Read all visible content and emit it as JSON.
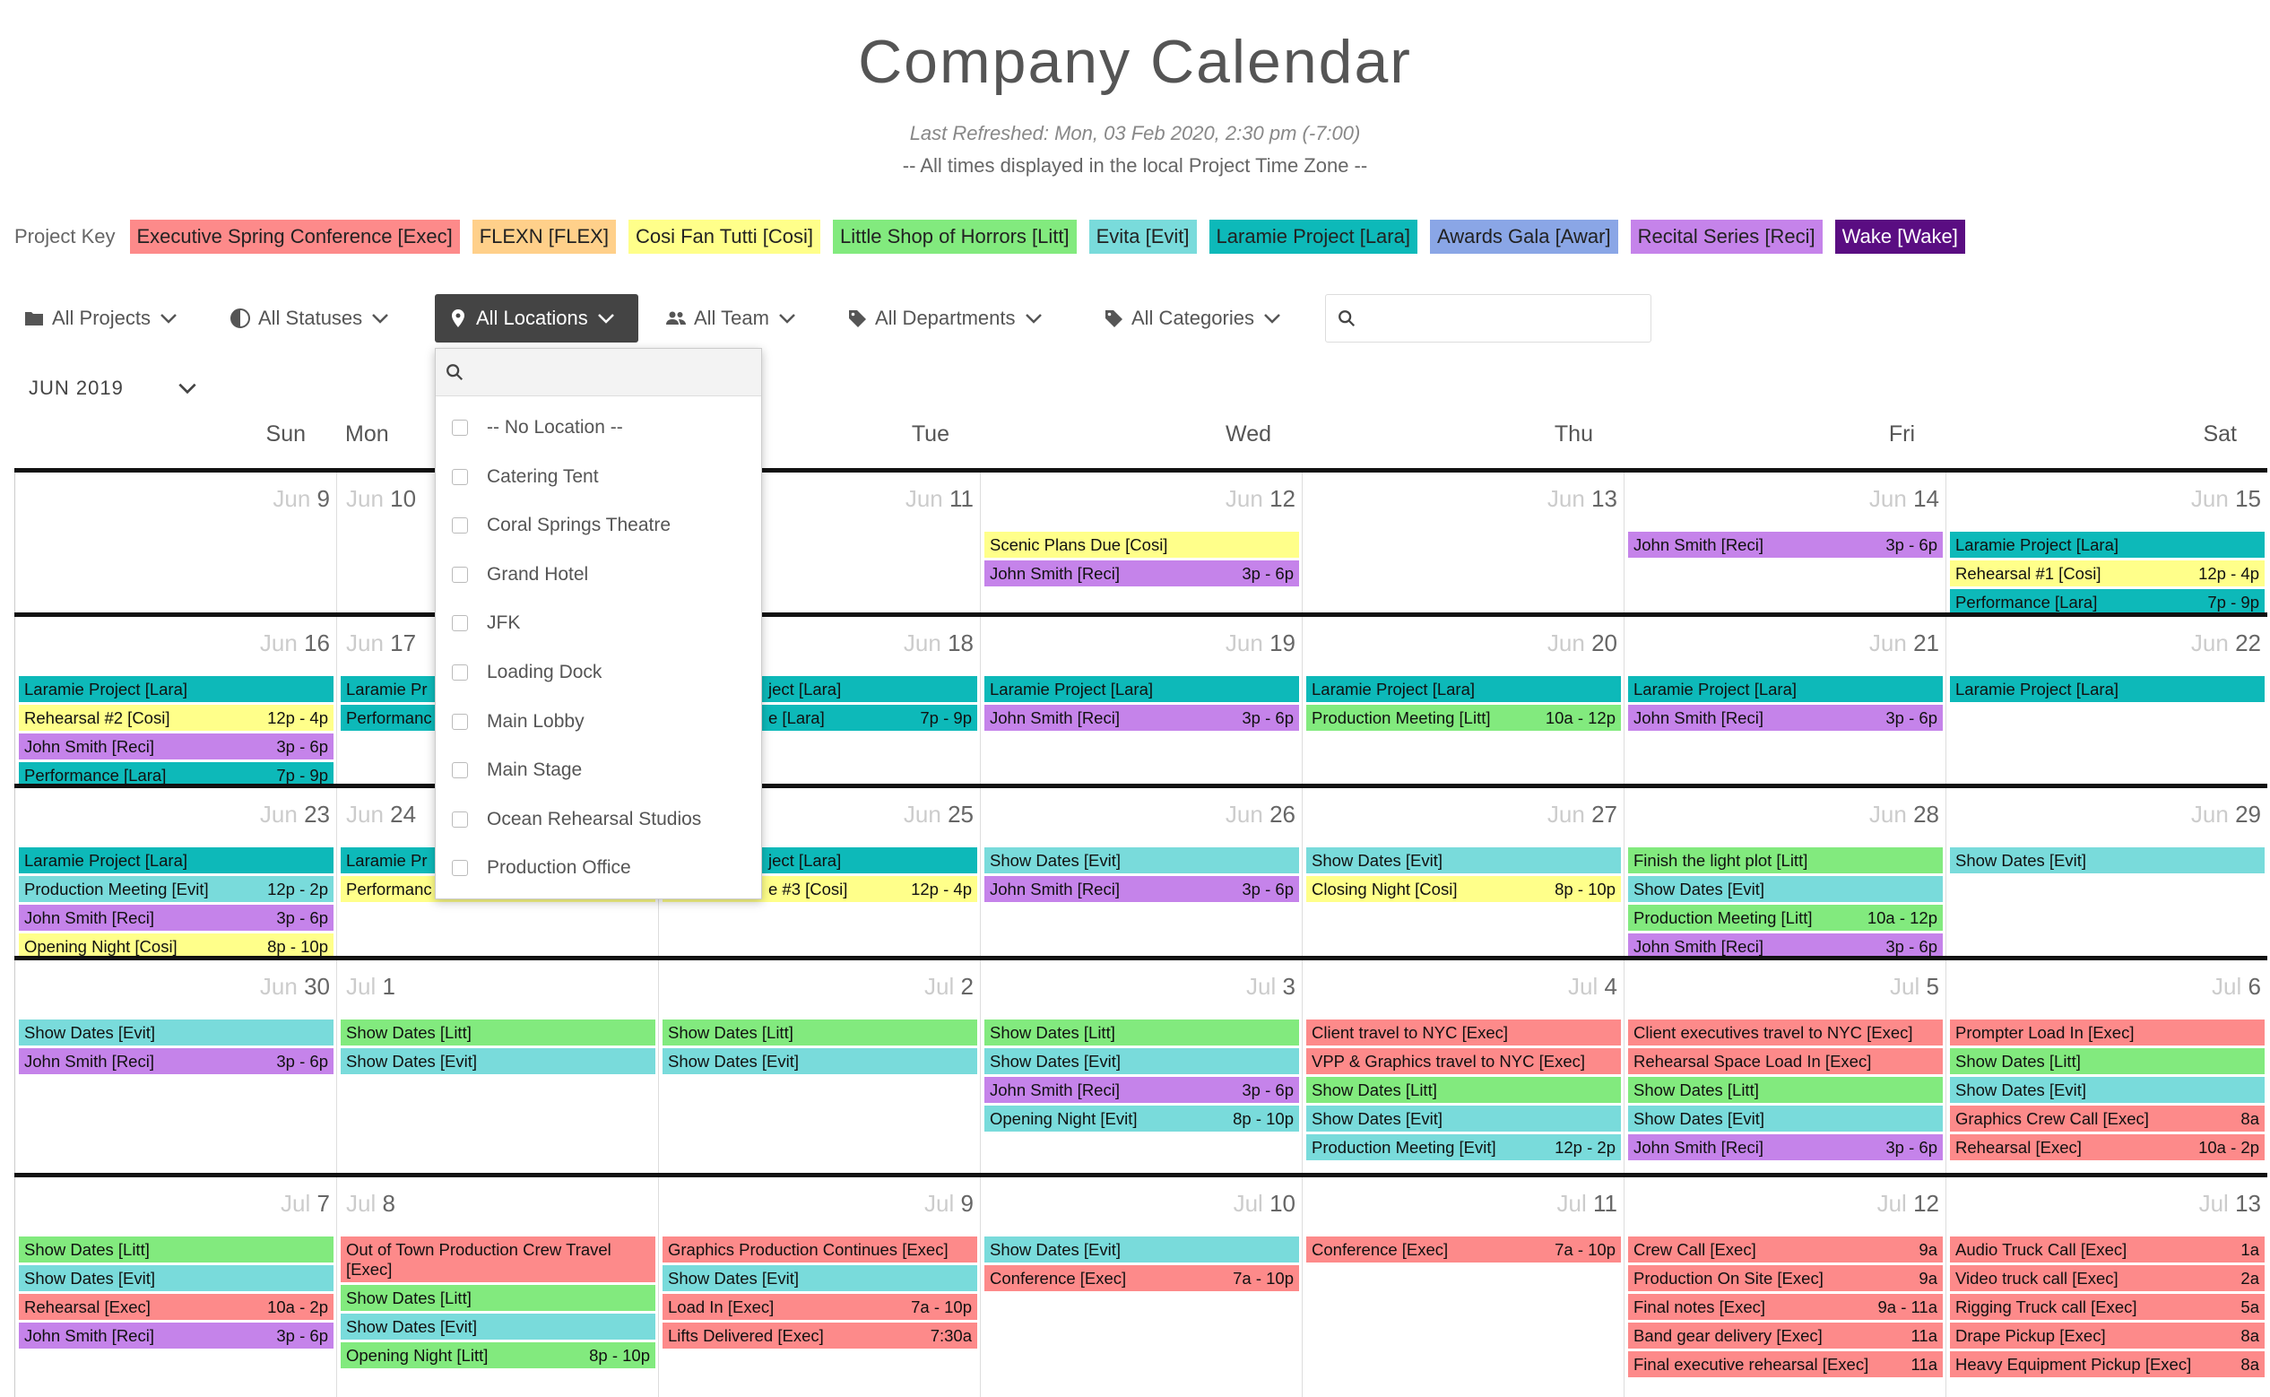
{
  "header": {
    "title": "Company Calendar",
    "refreshed": "Last Refreshed: Mon, 03 Feb 2020, 2:30 pm (-7:00)",
    "tz_note": "-- All times displayed in the local Project Time Zone --"
  },
  "project_key": {
    "label": "Project Key",
    "projects": [
      {
        "code": "Exec",
        "label": "Executive Spring Conference [Exec]",
        "color": "#fd8a8a",
        "text_color": "#222"
      },
      {
        "code": "FLEX",
        "label": "FLEXN [FLEX]",
        "color": "#ffd08a",
        "text_color": "#222"
      },
      {
        "code": "Cosi",
        "label": "Cosi Fan Tutti [Cosi]",
        "color": "#ffff8a",
        "text_color": "#222"
      },
      {
        "code": "Litt",
        "label": "Little Shop of Horrors [Litt]",
        "color": "#82ea7e",
        "text_color": "#222"
      },
      {
        "code": "Evit",
        "label": "Evita [Evit]",
        "color": "#79dbdb",
        "text_color": "#222"
      },
      {
        "code": "Lara",
        "label": "Laramie Project [Lara]",
        "color": "#0db9b9",
        "text_color": "#222"
      },
      {
        "code": "Awar",
        "label": "Awards Gala [Awar]",
        "color": "#8aa6e6",
        "text_color": "#222"
      },
      {
        "code": "Reci",
        "label": "Recital Series [Reci]",
        "color": "#c583ea",
        "text_color": "#222"
      },
      {
        "code": "Wake",
        "label": "Wake [Wake]",
        "color": "#5a0d82",
        "text_color": "#ffffff"
      }
    ]
  },
  "filters": {
    "projects": "All Projects",
    "statuses": "All Statuses",
    "locations": "All Locations",
    "team": "All Team",
    "departments": "All Departments",
    "categories": "All Categories",
    "search_placeholder": ""
  },
  "month_select": "JUN 2019",
  "day_names": [
    "Sun",
    "Mon",
    "Tue",
    "Wed",
    "Thu",
    "Fri",
    "Sat"
  ],
  "location_dropdown": {
    "search_placeholder": "",
    "options": [
      "-- No Location --",
      "Catering Tent",
      "Coral Springs Theatre",
      "Grand Hotel",
      "JFK",
      "Loading Dock",
      "Main Lobby",
      "Main Stage",
      "Ocean Rehearsal Studios",
      "Production Office"
    ]
  },
  "weeks": [
    {
      "days": [
        {
          "m": "Jun",
          "d": "9",
          "events": []
        },
        {
          "m": "Jun",
          "d": "10",
          "events": []
        },
        {
          "m": "Jun",
          "d": "11",
          "events": []
        },
        {
          "m": "Jun",
          "d": "12",
          "events": [
            {
              "title": "Scenic Plans Due [Cosi]",
              "time": "",
              "p": "Cosi"
            },
            {
              "title": "John Smith [Reci]",
              "time": "3p - 6p",
              "p": "Reci"
            }
          ]
        },
        {
          "m": "Jun",
          "d": "13",
          "events": []
        },
        {
          "m": "Jun",
          "d": "14",
          "events": [
            {
              "title": "John Smith [Reci]",
              "time": "3p - 6p",
              "p": "Reci"
            }
          ]
        },
        {
          "m": "Jun",
          "d": "15",
          "events": [
            {
              "title": "Laramie Project [Lara]",
              "time": "",
              "p": "Lara"
            },
            {
              "title": "Rehearsal #1 [Cosi]",
              "time": "12p - 4p",
              "p": "Cosi"
            },
            {
              "title": "Performance [Lara]",
              "time": "7p - 9p",
              "p": "Lara"
            }
          ]
        }
      ]
    },
    {
      "days": [
        {
          "m": "Jun",
          "d": "16",
          "events": [
            {
              "title": "Laramie Project [Lara]",
              "time": "",
              "p": "Lara"
            },
            {
              "title": "Rehearsal #2 [Cosi]",
              "time": "12p - 4p",
              "p": "Cosi"
            },
            {
              "title": "John Smith [Reci]",
              "time": "3p - 6p",
              "p": "Reci"
            },
            {
              "title": "Performance [Lara]",
              "time": "7p - 9p",
              "p": "Lara"
            }
          ]
        },
        {
          "m": "Jun",
          "d": "17",
          "events": [
            {
              "title": "Laramie Pr",
              "time": "",
              "p": "Lara"
            },
            {
              "title": "Performanc",
              "time": "",
              "p": "Lara"
            }
          ]
        },
        {
          "m": "Jun",
          "d": "18",
          "events": [
            {
              "title": "ject [Lara]",
              "time": "",
              "p": "Lara"
            },
            {
              "title": "e [Lara]",
              "time": "7p - 9p",
              "p": "Lara"
            }
          ]
        },
        {
          "m": "Jun",
          "d": "19",
          "events": [
            {
              "title": "Laramie Project [Lara]",
              "time": "",
              "p": "Lara"
            },
            {
              "title": "John Smith [Reci]",
              "time": "3p - 6p",
              "p": "Reci"
            }
          ]
        },
        {
          "m": "Jun",
          "d": "20",
          "events": [
            {
              "title": "Laramie Project [Lara]",
              "time": "",
              "p": "Lara"
            },
            {
              "title": "Production Meeting [Litt]",
              "time": "10a - 12p",
              "p": "Litt"
            }
          ]
        },
        {
          "m": "Jun",
          "d": "21",
          "events": [
            {
              "title": "Laramie Project [Lara]",
              "time": "",
              "p": "Lara"
            },
            {
              "title": "John Smith [Reci]",
              "time": "3p - 6p",
              "p": "Reci"
            }
          ]
        },
        {
          "m": "Jun",
          "d": "22",
          "events": [
            {
              "title": "Laramie Project [Lara]",
              "time": "",
              "p": "Lara"
            }
          ]
        }
      ]
    },
    {
      "days": [
        {
          "m": "Jun",
          "d": "23",
          "events": [
            {
              "title": "Laramie Project [Lara]",
              "time": "",
              "p": "Lara"
            },
            {
              "title": "Production Meeting [Evit]",
              "time": "12p - 2p",
              "p": "Evit"
            },
            {
              "title": "John Smith [Reci]",
              "time": "3p - 6p",
              "p": "Reci"
            },
            {
              "title": "Opening Night [Cosi]",
              "time": "8p - 10p",
              "p": "Cosi"
            }
          ]
        },
        {
          "m": "Jun",
          "d": "24",
          "events": [
            {
              "title": "Laramie Pr",
              "time": "",
              "p": "Lara"
            },
            {
              "title": "Performanc",
              "time": "",
              "p": "Cosi"
            }
          ]
        },
        {
          "m": "Jun",
          "d": "25",
          "events": [
            {
              "title": "ject [Lara]",
              "time": "",
              "p": "Lara"
            },
            {
              "title": "e #3 [Cosi]",
              "time": "12p - 4p",
              "p": "Cosi"
            }
          ]
        },
        {
          "m": "Jun",
          "d": "26",
          "events": [
            {
              "title": "Show Dates [Evit]",
              "time": "",
              "p": "Evit"
            },
            {
              "title": "John Smith [Reci]",
              "time": "3p - 6p",
              "p": "Reci"
            }
          ]
        },
        {
          "m": "Jun",
          "d": "27",
          "events": [
            {
              "title": "Show Dates [Evit]",
              "time": "",
              "p": "Evit"
            },
            {
              "title": "Closing Night [Cosi]",
              "time": "8p - 10p",
              "p": "Cosi"
            }
          ]
        },
        {
          "m": "Jun",
          "d": "28",
          "events": [
            {
              "title": "Finish the light plot [Litt]",
              "time": "",
              "p": "Litt"
            },
            {
              "title": "Show Dates [Evit]",
              "time": "",
              "p": "Evit"
            },
            {
              "title": "Production Meeting [Litt]",
              "time": "10a - 12p",
              "p": "Litt"
            },
            {
              "title": "John Smith [Reci]",
              "time": "3p - 6p",
              "p": "Reci"
            }
          ]
        },
        {
          "m": "Jun",
          "d": "29",
          "events": [
            {
              "title": "Show Dates [Evit]",
              "time": "",
              "p": "Evit"
            }
          ]
        }
      ]
    },
    {
      "days": [
        {
          "m": "Jun",
          "d": "30",
          "events": [
            {
              "title": "Show Dates [Evit]",
              "time": "",
              "p": "Evit"
            },
            {
              "title": "John Smith [Reci]",
              "time": "3p - 6p",
              "p": "Reci"
            }
          ]
        },
        {
          "m": "Jul",
          "d": "1",
          "events": [
            {
              "title": "Show Dates [Litt]",
              "time": "",
              "p": "Litt"
            },
            {
              "title": "Show Dates [Evit]",
              "time": "",
              "p": "Evit"
            }
          ]
        },
        {
          "m": "Jul",
          "d": "2",
          "events": [
            {
              "title": "Show Dates [Litt]",
              "time": "",
              "p": "Litt"
            },
            {
              "title": "Show Dates [Evit]",
              "time": "",
              "p": "Evit"
            }
          ]
        },
        {
          "m": "Jul",
          "d": "3",
          "events": [
            {
              "title": "Show Dates [Litt]",
              "time": "",
              "p": "Litt"
            },
            {
              "title": "Show Dates [Evit]",
              "time": "",
              "p": "Evit"
            },
            {
              "title": "John Smith [Reci]",
              "time": "3p - 6p",
              "p": "Reci"
            },
            {
              "title": "Opening Night [Evit]",
              "time": "8p - 10p",
              "p": "Evit"
            }
          ]
        },
        {
          "m": "Jul",
          "d": "4",
          "events": [
            {
              "title": "Client travel to NYC [Exec]",
              "time": "",
              "p": "Exec"
            },
            {
              "title": "VPP & Graphics travel to NYC [Exec]",
              "time": "",
              "p": "Exec"
            },
            {
              "title": "Show Dates [Litt]",
              "time": "",
              "p": "Litt"
            },
            {
              "title": "Show Dates [Evit]",
              "time": "",
              "p": "Evit"
            },
            {
              "title": "Production Meeting [Evit]",
              "time": "12p - 2p",
              "p": "Evit"
            }
          ]
        },
        {
          "m": "Jul",
          "d": "5",
          "events": [
            {
              "title": "Client executives travel to NYC [Exec]",
              "time": "",
              "p": "Exec"
            },
            {
              "title": "Rehearsal Space Load In [Exec]",
              "time": "",
              "p": "Exec"
            },
            {
              "title": "Show Dates [Litt]",
              "time": "",
              "p": "Litt"
            },
            {
              "title": "Show Dates [Evit]",
              "time": "",
              "p": "Evit"
            },
            {
              "title": "John Smith [Reci]",
              "time": "3p - 6p",
              "p": "Reci"
            }
          ]
        },
        {
          "m": "Jul",
          "d": "6",
          "events": [
            {
              "title": "Prompter Load In [Exec]",
              "time": "",
              "p": "Exec"
            },
            {
              "title": "Show Dates [Litt]",
              "time": "",
              "p": "Litt"
            },
            {
              "title": "Show Dates [Evit]",
              "time": "",
              "p": "Evit"
            },
            {
              "title": "Graphics Crew Call [Exec]",
              "time": "8a",
              "p": "Exec"
            },
            {
              "title": "Rehearsal [Exec]",
              "time": "10a - 2p",
              "p": "Exec"
            }
          ]
        }
      ]
    },
    {
      "days": [
        {
          "m": "Jul",
          "d": "7",
          "events": [
            {
              "title": "Show Dates [Litt]",
              "time": "",
              "p": "Litt"
            },
            {
              "title": "Show Dates [Evit]",
              "time": "",
              "p": "Evit"
            },
            {
              "title": "Rehearsal [Exec]",
              "time": "10a - 2p",
              "p": "Exec"
            },
            {
              "title": "John Smith [Reci]",
              "time": "3p - 6p",
              "p": "Reci"
            }
          ]
        },
        {
          "m": "Jul",
          "d": "8",
          "events": [
            {
              "title": "Out of Town Production Crew Travel [Exec]",
              "time": "",
              "p": "Exec"
            },
            {
              "title": "Show Dates [Litt]",
              "time": "",
              "p": "Litt"
            },
            {
              "title": "Show Dates [Evit]",
              "time": "",
              "p": "Evit"
            },
            {
              "title": "Opening Night [Litt]",
              "time": "8p - 10p",
              "p": "Litt"
            }
          ]
        },
        {
          "m": "Jul",
          "d": "9",
          "events": [
            {
              "title": "Graphics Production Continues [Exec]",
              "time": "",
              "p": "Exec"
            },
            {
              "title": "Show Dates [Evit]",
              "time": "",
              "p": "Evit"
            },
            {
              "title": "Load In [Exec]",
              "time": "7a - 10p",
              "p": "Exec"
            },
            {
              "title": "Lifts Delivered [Exec]",
              "time": "7:30a",
              "p": "Exec"
            }
          ]
        },
        {
          "m": "Jul",
          "d": "10",
          "events": [
            {
              "title": "Show Dates [Evit]",
              "time": "",
              "p": "Evit"
            },
            {
              "title": "Conference [Exec]",
              "time": "7a - 10p",
              "p": "Exec"
            }
          ]
        },
        {
          "m": "Jul",
          "d": "11",
          "events": [
            {
              "title": "Conference [Exec]",
              "time": "7a - 10p",
              "p": "Exec"
            }
          ]
        },
        {
          "m": "Jul",
          "d": "12",
          "events": [
            {
              "title": "Crew Call [Exec]",
              "time": "9a",
              "p": "Exec"
            },
            {
              "title": "Production On Site [Exec]",
              "time": "9a",
              "p": "Exec"
            },
            {
              "title": "Final notes [Exec]",
              "time": "9a - 11a",
              "p": "Exec"
            },
            {
              "title": "Band gear delivery [Exec]",
              "time": "11a",
              "p": "Exec"
            },
            {
              "title": "Final executive rehearsal [Exec]",
              "time": "11a",
              "p": "Exec"
            }
          ]
        },
        {
          "m": "Jul",
          "d": "13",
          "events": [
            {
              "title": "Audio Truck Call [Exec]",
              "time": "1a",
              "p": "Exec"
            },
            {
              "title": "Video truck call [Exec]",
              "time": "2a",
              "p": "Exec"
            },
            {
              "title": "Rigging Truck call [Exec]",
              "time": "5a",
              "p": "Exec"
            },
            {
              "title": "Drape Pickup [Exec]",
              "time": "8a",
              "p": "Exec"
            },
            {
              "title": "Heavy Equipment Pickup [Exec]",
              "time": "8a",
              "p": "Exec"
            }
          ]
        }
      ]
    }
  ]
}
